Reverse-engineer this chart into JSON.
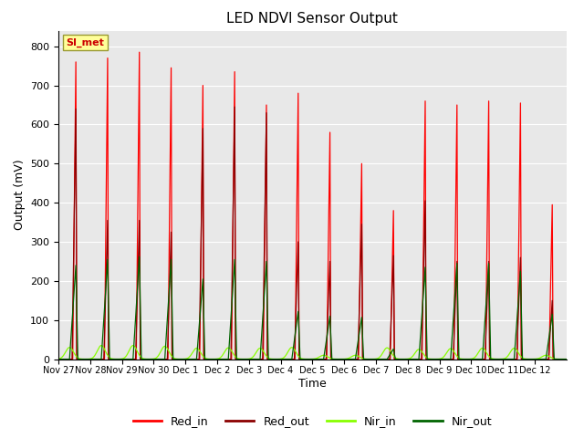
{
  "title": "LED NDVI Sensor Output",
  "xlabel": "Time",
  "ylabel": "Output (mV)",
  "ylim": [
    0,
    840
  ],
  "yticks": [
    0,
    100,
    200,
    300,
    400,
    500,
    600,
    700,
    800
  ],
  "bg_color": "#e8e8e8",
  "annotation_text": "SI_met",
  "annotation_color": "#cc0000",
  "annotation_bg": "#ffff99",
  "colors": {
    "Red_in": "#ff0000",
    "Red_out": "#8b0000",
    "Nir_in": "#88ff00",
    "Nir_out": "#006400"
  },
  "xtick_labels": [
    "Nov 27",
    "Nov 28",
    "Nov 29",
    "Nov 30",
    "Dec 1",
    "Dec 2",
    "Dec 3",
    "Dec 4",
    "Dec 5",
    "Dec 6",
    "Dec 7",
    "Dec 8",
    "Dec 9",
    "Dec 10",
    "Dec 11",
    "Dec 12"
  ],
  "num_periods": 16,
  "peaks": {
    "Red_in": [
      760,
      770,
      785,
      745,
      700,
      735,
      650,
      680,
      580,
      500,
      380,
      660,
      650,
      660,
      655,
      395
    ],
    "Red_out": [
      640,
      355,
      355,
      325,
      590,
      645,
      630,
      300,
      250,
      345,
      265,
      405,
      250,
      250,
      260,
      150
    ],
    "Nir_in": [
      30,
      35,
      35,
      33,
      28,
      29,
      28,
      30,
      10,
      10,
      29,
      25,
      27,
      28,
      28,
      10
    ],
    "Nir_out": [
      240,
      255,
      262,
      255,
      205,
      255,
      250,
      122,
      110,
      107,
      26,
      235,
      245,
      245,
      225,
      115
    ]
  }
}
